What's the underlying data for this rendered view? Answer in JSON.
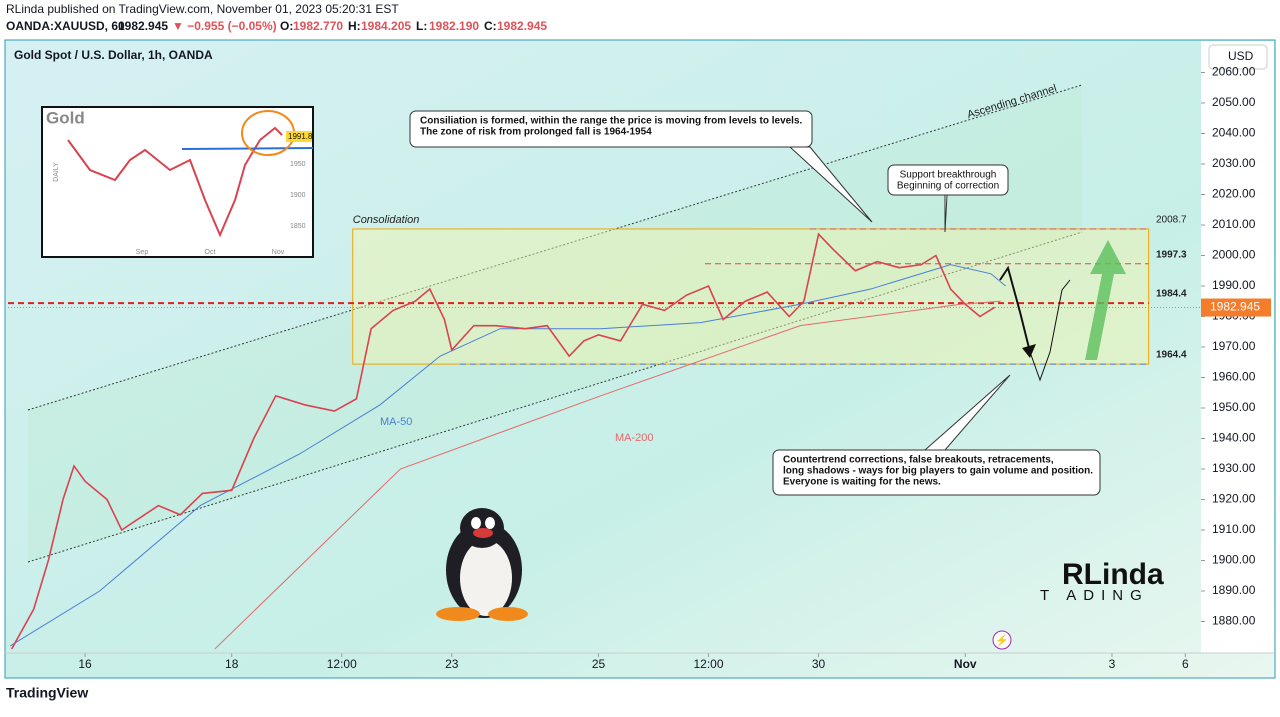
{
  "header": {
    "publisher": "RLinda published on TradingView.com, November 01, 2023 05:20:31 EST",
    "symbol": "OANDA:XAUUSD, 60",
    "price": "1982.945",
    "change": "▼ −0.955 (−0.05%)",
    "ohlc": [
      [
        "O:",
        "1982.770"
      ],
      [
        "H:",
        "1984.205"
      ],
      [
        "L:",
        "1982.190"
      ],
      [
        "C:",
        "1982.945"
      ]
    ]
  },
  "footer": {
    "brand": "TradingView"
  },
  "logo": {
    "name": "RLinda",
    "sub": "T ADING"
  },
  "inset": {
    "title": "Gold",
    "axis": "DAILY",
    "yticks": [
      "1950",
      "1900",
      "1850"
    ],
    "xticks": [
      "Sep",
      "Oct",
      "Nov"
    ],
    "price": "1991.8"
  },
  "chart_data": {
    "type": "line",
    "title": "Gold Spot / U.S. Dollar, 1h, OANDA",
    "currency": "USD",
    "color": "#d9434f",
    "x": [
      -1,
      -0.7,
      -0.5,
      -0.3,
      -0.15,
      0,
      0.3,
      0.5,
      1,
      1.3,
      1.6,
      2,
      2.3,
      2.6,
      3,
      3.4,
      3.7,
      3.9,
      4.2,
      4.5,
      4.7,
      4.9,
      5,
      5.3,
      5.6,
      6,
      6.3,
      6.6,
      6.8,
      7,
      7.3,
      7.6,
      7.9,
      8.2,
      8.5,
      8.7,
      9,
      9.3,
      9.6,
      9.8,
      10,
      10.2,
      10.5,
      10.8,
      11.1,
      11.4,
      11.6,
      11.8,
      12,
      12.2,
      12.4
    ],
    "values": [
      1871,
      1884,
      1900,
      1920,
      1931,
      1926,
      1920,
      1910,
      1918,
      1915,
      1922,
      1923,
      1940,
      1954,
      1951,
      1949,
      1953,
      1976,
      1982,
      1985,
      1989,
      1979,
      1969,
      1977,
      1977,
      1976,
      1977,
      1967,
      1972,
      1974,
      1972,
      1984,
      1982,
      1987,
      1990,
      1979,
      1985,
      1988,
      1980,
      1985,
      2007,
      2002,
      1995,
      1998,
      1996,
      1997,
      2000,
      1989,
      1984,
      1980,
      1983
    ],
    "moving_averages": [
      {
        "name": "MA-50",
        "color": "#4a7fd6",
        "x": [
          -1.02,
          0.2,
          1.57,
          2.93,
          4.02,
          4.84,
          5.66,
          7.03,
          8.39,
          9.75,
          10.71,
          11.8,
          12.35,
          12.55
        ],
        "values": [
          1872,
          1890,
          1918,
          1935,
          1951,
          1967,
          1976,
          1976,
          1978,
          1984,
          1989,
          1997,
          1994,
          1990
        ]
      },
      {
        "name": "MA-200",
        "color": "#e46a6a",
        "x": [
          1.77,
          4.3,
          7.03,
          9.75,
          11.94,
          12.48
        ],
        "values": [
          1871,
          1930,
          1954,
          1977,
          1984,
          1985
        ]
      }
    ],
    "levels": [
      2008.7,
      1997.3,
      1984.4,
      1964.4
    ],
    "last_price": 1982.945,
    "box": {
      "label": "Consolidation",
      "x": [
        3.65,
        14.5
      ]
    },
    "channel_label": "Ascending channel",
    "notes": [
      {
        "lines": [
          "Consiliation is formed, within the range the price is moving from levels to levels.",
          "The zone of risk from prolonged fall is 1964-1954"
        ]
      },
      {
        "lines": [
          "Support breakthrough",
          "Beginning of correction"
        ]
      },
      {
        "lines": [
          "Countertrend corrections, false breakouts, retracements,",
          "long shadows - ways for big players to gain volume and position.",
          "Everyone is waiting for the news."
        ]
      }
    ],
    "xlim": [
      -1.05,
      15.2
    ],
    "ylim": [
      1870,
      2070
    ],
    "xticks": [
      {
        "value": 0,
        "label": "16"
      },
      {
        "value": 2,
        "label": "18"
      },
      {
        "value": 3.5,
        "label": "12:00"
      },
      {
        "value": 5,
        "label": "23"
      },
      {
        "value": 7,
        "label": "25"
      },
      {
        "value": 8.5,
        "label": "12:00"
      },
      {
        "value": 10,
        "label": "30"
      },
      {
        "value": 12,
        "label": "Nov"
      },
      {
        "value": 14,
        "label": "3"
      },
      {
        "value": 15,
        "label": "6"
      }
    ],
    "yticks": [
      {
        "value": 1880,
        "label": "1880.00"
      },
      {
        "value": 1890,
        "label": "1890.00"
      },
      {
        "value": 1900,
        "label": "1900.00"
      },
      {
        "value": 1910,
        "label": "1910.00"
      },
      {
        "value": 1920,
        "label": "1920.00"
      },
      {
        "value": 1930,
        "label": "1930.00"
      },
      {
        "value": 1940,
        "label": "1940.00"
      },
      {
        "value": 1950,
        "label": "1950.00"
      },
      {
        "value": 1960,
        "label": "1960.00"
      },
      {
        "value": 1970,
        "label": "1970.00"
      },
      {
        "value": 1980,
        "label": "1980.00"
      },
      {
        "value": 1990,
        "label": "1990.00"
      },
      {
        "value": 2000,
        "label": "2000.00"
      },
      {
        "value": 2010,
        "label": "2010.00"
      },
      {
        "value": 2020,
        "label": "2020.00"
      },
      {
        "value": 2030,
        "label": "2030.00"
      },
      {
        "value": 2040,
        "label": "2040.00"
      },
      {
        "value": 2050,
        "label": "2050.00"
      },
      {
        "value": 2060,
        "label": "2060.00"
      }
    ],
    "grid": false
  }
}
